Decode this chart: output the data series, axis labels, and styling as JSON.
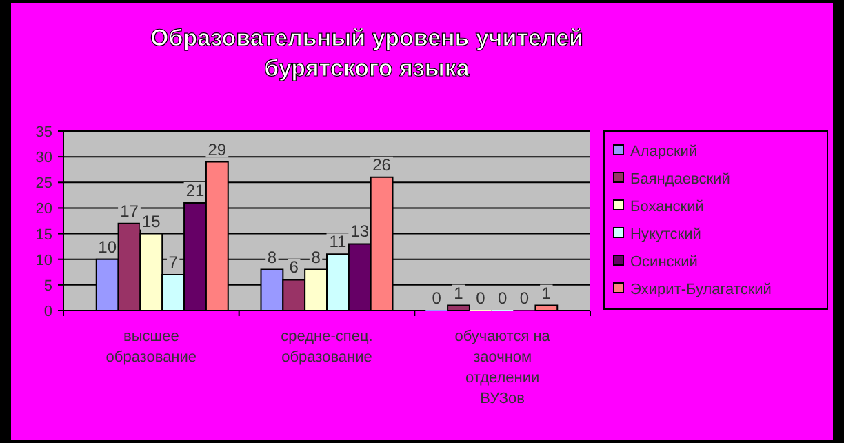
{
  "chart_data": {
    "type": "bar",
    "title": "Образовательный уровень учителей бурятского языка",
    "categories": [
      "высшее образование",
      "средне-спец. образование",
      "обучаются на заочном отделении ВУЗов"
    ],
    "series": [
      {
        "name": "Аларский",
        "color": "#9999ff",
        "values": [
          10,
          8,
          0
        ]
      },
      {
        "name": "Баяндаевский",
        "color": "#993366",
        "values": [
          17,
          6,
          1
        ]
      },
      {
        "name": "Боханский",
        "color": "#ffffcc",
        "values": [
          15,
          8,
          0
        ]
      },
      {
        "name": "Нукутский",
        "color": "#ccffff",
        "values": [
          7,
          11,
          0
        ]
      },
      {
        "name": "Осинский",
        "color": "#660066",
        "values": [
          21,
          13,
          0
        ]
      },
      {
        "name": "Эхирит-Булагатский",
        "color": "#ff8080",
        "values": [
          29,
          26,
          1
        ]
      }
    ],
    "ylim": [
      0,
      35
    ],
    "yticks": [
      0,
      5,
      10,
      15,
      20,
      25,
      30,
      35
    ],
    "grid": "y",
    "legend": "right",
    "data_labels": true
  }
}
